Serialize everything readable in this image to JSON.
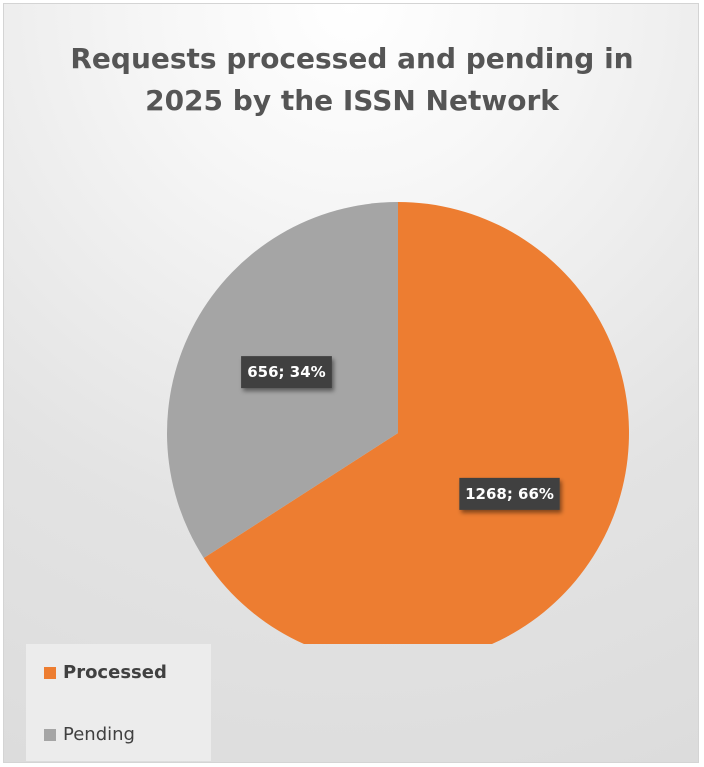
{
  "chart_data": {
    "type": "pie",
    "title": "Requests processed and pending in 2025 by the ISSN Network",
    "slices": [
      {
        "label": "Processed",
        "value": 1268,
        "percent": 66,
        "color": "#ED7D31",
        "data_label": "1268; 66%"
      },
      {
        "label": "Pending",
        "value": 656,
        "percent": 34,
        "color": "#A5A5A5",
        "data_label": "656; 34%"
      }
    ],
    "legend": {
      "position": "bottom-left",
      "entries": [
        "Processed",
        "Pending"
      ]
    },
    "start_angle": "12 o'clock",
    "direction": "clockwise"
  }
}
